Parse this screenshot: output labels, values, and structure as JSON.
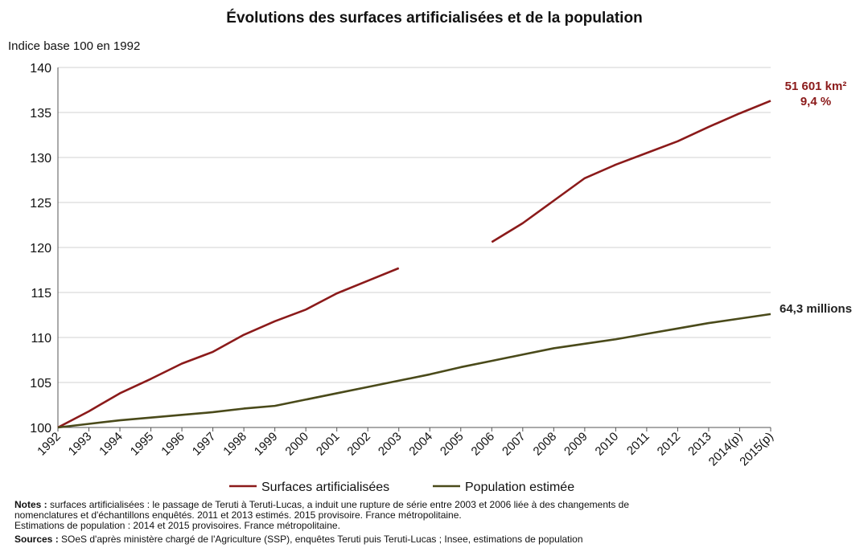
{
  "chart_data": {
    "type": "line",
    "title": "Évolutions des surfaces artificialisées et de la population",
    "ylabel": "Indice base 100 en 1992",
    "xlabel": "",
    "ylim": [
      100,
      140
    ],
    "yticks": [
      "100",
      "105",
      "110",
      "115",
      "120",
      "125",
      "130",
      "135",
      "140"
    ],
    "categories": [
      "1992",
      "1993",
      "1994",
      "1995",
      "1996",
      "1997",
      "1998",
      "1999",
      "2000",
      "2001",
      "2002",
      "2003",
      "2004",
      "2005",
      "2006",
      "2007",
      "2008",
      "2009",
      "2010",
      "2011",
      "2012",
      "2013",
      "2014(p)",
      "2015(p)"
    ],
    "grid": "horizontal",
    "legend_position": "bottom",
    "series": [
      {
        "name": "Surfaces artificialisées",
        "color": "#8b1a1a",
        "values": [
          100,
          101.8,
          103.8,
          105.4,
          107.1,
          108.4,
          110.3,
          111.8,
          113.1,
          114.9,
          116.3,
          117.7,
          null,
          null,
          120.6,
          122.7,
          125.2,
          127.7,
          129.2,
          130.5,
          131.8,
          133.4,
          134.9,
          136.3
        ],
        "end_label": [
          "51 601 km²",
          "9,4 %"
        ]
      },
      {
        "name": "Population estimée",
        "color": "#4a4a1a",
        "values": [
          100,
          100.4,
          100.8,
          101.1,
          101.4,
          101.7,
          102.1,
          102.4,
          103.1,
          103.8,
          104.5,
          105.2,
          105.9,
          106.7,
          107.4,
          108.1,
          108.8,
          109.3,
          109.8,
          110.4,
          111.0,
          111.6,
          112.1,
          112.6
        ],
        "end_label": [
          "64,3 millions"
        ]
      }
    ]
  },
  "footer": {
    "notes_label": "Notes :",
    "notes_line1": "surfaces artificialisées : le passage de Teruti à Teruti-Lucas, a induit une rupture de série entre 2003 et 2006 liée à des changements de",
    "notes_line2": "nomenclatures et d'échantillons enquêtés. 2011 et 2013 estimés. 2015 provisoire. France métropolitaine.",
    "notes_line3": "Estimations de population : 2014 et 2015 provisoires. France métropolitaine.",
    "sources_label": "Sources :",
    "sources_text": "SOeS d'après ministère chargé de l'Agriculture (SSP), enquêtes Teruti puis Teruti-Lucas ; Insee, estimations de population"
  }
}
